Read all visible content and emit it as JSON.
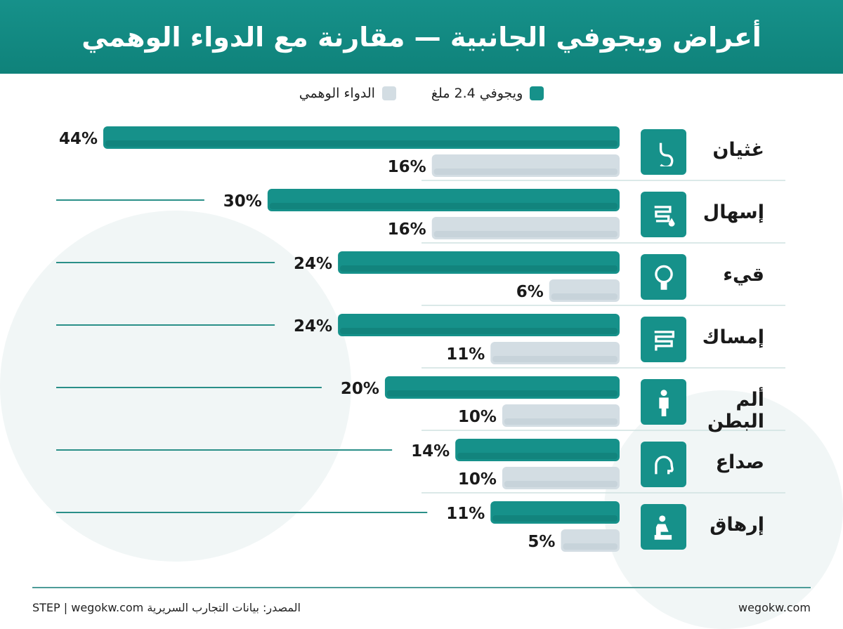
{
  "header": {
    "title": "أعراض ويجوفي الجانبية — مقارنة مع الدواء الوهمي"
  },
  "colors": {
    "drug": "#16918a",
    "placebo": "#d3dde3",
    "header": "#13897f"
  },
  "chart_data": {
    "type": "bar",
    "orientation": "horizontal",
    "title": "أعراض ويجوفي الجانبية — مقارنة مع الدواء الوهمي",
    "categories": [
      "غثيان",
      "إسهال",
      "قيء",
      "إمساك",
      "ألم البطن",
      "صداع",
      "إرهاق"
    ],
    "category_icons": [
      "stomach-icon",
      "intestine-drop-icon",
      "vomiting-face-icon",
      "intestine-icon",
      "abdominal-pain-person-icon",
      "head-pain-icon",
      "tired-person-icon"
    ],
    "series": [
      {
        "name": "ويجوفي 2.4 ملغ",
        "values": [
          44,
          30,
          24,
          24,
          20,
          14,
          11
        ],
        "color": "#16918a"
      },
      {
        "name": "الدواء الوهمي",
        "values": [
          16,
          16,
          6,
          11,
          10,
          10,
          5
        ],
        "color": "#d3dde3"
      }
    ],
    "value_format": "%",
    "xlim": [
      0,
      44
    ],
    "legend_position": "top",
    "grid": false
  },
  "footer": {
    "source": "المصدر: بيانات التجارب السريرية STEP | wegokw.com",
    "site": "wegokw.com"
  }
}
